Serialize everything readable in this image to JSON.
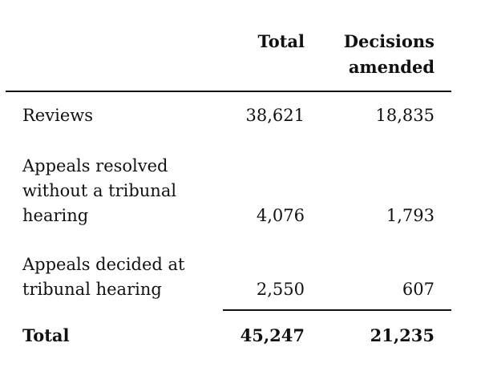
{
  "header": {
    "total": "Total",
    "decisions_line1": "Decisions",
    "decisions_line2": "amended"
  },
  "rows": [
    {
      "label_lines": [
        "Reviews"
      ],
      "total": "38,621",
      "amended": "18,835"
    },
    {
      "label_lines": [
        "Appeals resolved",
        "without a tribunal",
        "hearing"
      ],
      "total": "4,076",
      "amended": "1,793"
    },
    {
      "label_lines": [
        "Appeals decided at",
        "tribunal hearing"
      ],
      "total": "2,550",
      "amended": "607"
    }
  ],
  "total_row": {
    "label": "Total",
    "total": "45,247",
    "amended": "21,235"
  }
}
